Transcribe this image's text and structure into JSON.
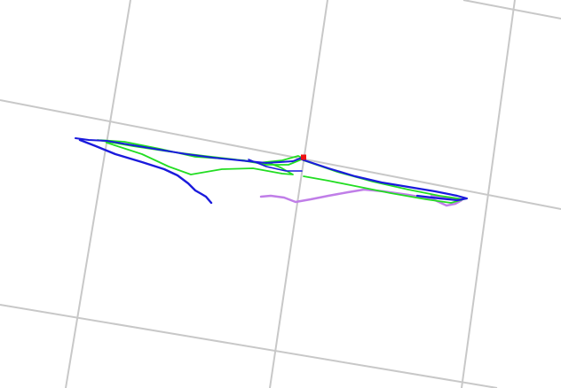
{
  "viewer": {
    "title": "",
    "background_color": "#ffffff",
    "grid_color": "#c8c8c8"
  },
  "trajectories": [
    {
      "name": "trajectory-blue",
      "color": "#1a1adc"
    },
    {
      "name": "trajectory-green",
      "color": "#22dd22"
    },
    {
      "name": "trajectory-violet",
      "color": "#c07ee8"
    }
  ],
  "marker": {
    "name": "current-position-marker",
    "color": "#ee1111"
  }
}
